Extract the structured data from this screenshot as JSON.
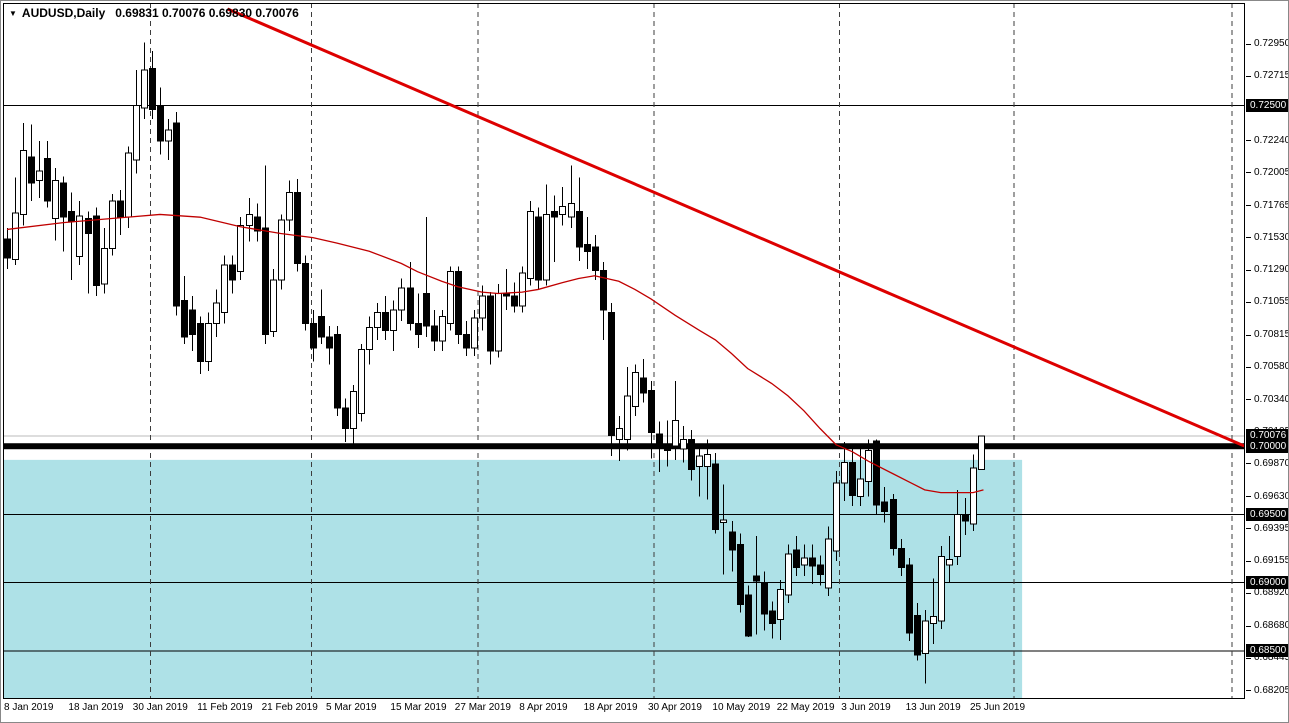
{
  "title": {
    "dropdown_icon": "▼",
    "symbol": "AUDUSD,Daily",
    "quote": "0.69831 0.70076 0.69830 0.70076"
  },
  "colors": {
    "bull_body": "#ffffff",
    "bear_body": "#000000",
    "candle_outline": "#000000",
    "trendline": "#dd0000",
    "ma_line": "#c00000",
    "zone_fill": "#aee1e7",
    "current_price_line": "#bbbbbb",
    "h_line": "#000000",
    "separator": "#3d3d3d",
    "tag_bg": "#000000",
    "tag_text": "#ffffff",
    "axis_text": "#000000"
  },
  "y_axis": {
    "ticks": [
      "0.72950",
      "0.72715",
      "0.72480",
      "0.72240",
      "0.72005",
      "0.71765",
      "0.71530",
      "0.71290",
      "0.71055",
      "0.70815",
      "0.70580",
      "0.70340",
      "0.70105",
      "0.69870",
      "0.69630",
      "0.69395",
      "0.69155",
      "0.68920",
      "0.68680",
      "0.68445",
      "0.68205"
    ],
    "tags": [
      "0.72500",
      "0.70076",
      "0.70000",
      "0.69500",
      "0.69000",
      "0.68500"
    ]
  },
  "x_axis": {
    "bars": [
      0,
      8,
      16,
      24,
      32,
      40,
      48,
      56,
      64,
      72,
      80,
      88,
      96,
      104,
      112,
      120
    ],
    "labels": [
      "8 Jan 2019",
      "18 Jan 2019",
      "30 Jan 2019",
      "11 Feb 2019",
      "21 Feb 2019",
      "5 Mar 2019",
      "15 Mar 2019",
      "27 Mar 2019",
      "8 Apr 2019",
      "18 Apr 2019",
      "30 Apr 2019",
      "10 May 2019",
      "22 May 2019",
      "3 Jun 2019",
      "13 Jun 2019",
      "25 Jun 2019"
    ]
  },
  "chart_data": {
    "type": "candlestick",
    "symbol": "AUDUSD",
    "timeframe": "Daily",
    "last_bar": {
      "open": 0.69831,
      "high": 0.70076,
      "low": 0.6983,
      "close": 0.70076
    },
    "visible_price_range": [
      0.6813,
      0.7301
    ],
    "h_lines": {
      "thick": 0.7,
      "thin": [
        0.725,
        0.695,
        0.69,
        0.685
      ],
      "current_price": 0.70076
    },
    "trendline": {
      "from": {
        "bar": 27.4,
        "price": 0.73207
      },
      "to": {
        "bar": 153.7,
        "price": 0.70002
      }
    },
    "zone": {
      "top_price": 0.699,
      "left_bar": -0.6,
      "right_bar": 126.1
    },
    "month_separators_bars": [
      17.8,
      37.8,
      58.5,
      80.4,
      103.4,
      125.1,
      152.2
    ],
    "candles": [
      [
        0.7152,
        0.716,
        0.713,
        0.7138
      ],
      [
        0.7137,
        0.7197,
        0.7133,
        0.7171
      ],
      [
        0.717,
        0.7237,
        0.7162,
        0.7217
      ],
      [
        0.7212,
        0.7236,
        0.718,
        0.7193
      ],
      [
        0.7195,
        0.7224,
        0.7182,
        0.7202
      ],
      [
        0.7211,
        0.7224,
        0.7175,
        0.718
      ],
      [
        0.7167,
        0.7204,
        0.7151,
        0.7195
      ],
      [
        0.7193,
        0.7198,
        0.7143,
        0.7168
      ],
      [
        0.7172,
        0.7186,
        0.7122,
        0.7165
      ],
      [
        0.7139,
        0.718,
        0.7133,
        0.7169
      ],
      [
        0.7167,
        0.7172,
        0.7112,
        0.7156
      ],
      [
        0.7169,
        0.7175,
        0.711,
        0.7118
      ],
      [
        0.7119,
        0.716,
        0.7112,
        0.7145
      ],
      [
        0.7145,
        0.7185,
        0.714,
        0.718
      ],
      [
        0.718,
        0.7188,
        0.7155,
        0.7168
      ],
      [
        0.7168,
        0.722,
        0.716,
        0.7215
      ],
      [
        0.721,
        0.7276,
        0.72,
        0.725
      ],
      [
        0.7248,
        0.7296,
        0.724,
        0.7276
      ],
      [
        0.7277,
        0.729,
        0.724,
        0.7247
      ],
      [
        0.7249,
        0.7263,
        0.7214,
        0.7224
      ],
      [
        0.7224,
        0.724,
        0.721,
        0.7232
      ],
      [
        0.7237,
        0.7245,
        0.7096,
        0.7103
      ],
      [
        0.7107,
        0.7125,
        0.7075,
        0.708
      ],
      [
        0.71,
        0.711,
        0.707,
        0.7082
      ],
      [
        0.709,
        0.7095,
        0.7053,
        0.7062
      ],
      [
        0.7062,
        0.7098,
        0.7055,
        0.709
      ],
      [
        0.709,
        0.7115,
        0.708,
        0.7105
      ],
      [
        0.7098,
        0.714,
        0.709,
        0.7133
      ],
      [
        0.7133,
        0.714,
        0.7112,
        0.7122
      ],
      [
        0.7128,
        0.7168,
        0.7122,
        0.7162
      ],
      [
        0.7162,
        0.7182,
        0.715,
        0.717
      ],
      [
        0.7168,
        0.7178,
        0.715,
        0.7158
      ],
      [
        0.716,
        0.7206,
        0.7075,
        0.7082
      ],
      [
        0.7084,
        0.713,
        0.708,
        0.7122
      ],
      [
        0.7122,
        0.717,
        0.7115,
        0.7166
      ],
      [
        0.7166,
        0.7195,
        0.7158,
        0.7186
      ],
      [
        0.7186,
        0.7196,
        0.7128,
        0.7134
      ],
      [
        0.7134,
        0.714,
        0.7085,
        0.709
      ],
      [
        0.709,
        0.71,
        0.7062,
        0.7072
      ],
      [
        0.7095,
        0.7115,
        0.7075,
        0.708
      ],
      [
        0.708,
        0.7088,
        0.706,
        0.7072
      ],
      [
        0.7082,
        0.7088,
        0.7022,
        0.7028
      ],
      [
        0.7028,
        0.7035,
        0.7003,
        0.7013
      ],
      [
        0.7013,
        0.7045,
        0.7,
        0.704
      ],
      [
        0.7024,
        0.7075,
        0.7018,
        0.7071
      ],
      [
        0.7071,
        0.7095,
        0.706,
        0.7087
      ],
      [
        0.7087,
        0.7105,
        0.7078,
        0.7098
      ],
      [
        0.7098,
        0.711,
        0.7078,
        0.7085
      ],
      [
        0.7085,
        0.7107,
        0.707,
        0.71
      ],
      [
        0.71,
        0.7123,
        0.7092,
        0.7116
      ],
      [
        0.7116,
        0.7135,
        0.7085,
        0.709
      ],
      [
        0.709,
        0.7112,
        0.7072,
        0.7082
      ],
      [
        0.7112,
        0.7168,
        0.708,
        0.7088
      ],
      [
        0.7088,
        0.71,
        0.707,
        0.7077
      ],
      [
        0.7077,
        0.71,
        0.707,
        0.7095
      ],
      [
        0.709,
        0.7132,
        0.7085,
        0.7128
      ],
      [
        0.7128,
        0.7132,
        0.7075,
        0.7082
      ],
      [
        0.7082,
        0.7092,
        0.7066,
        0.7072
      ],
      [
        0.7072,
        0.71,
        0.7066,
        0.7094
      ],
      [
        0.7094,
        0.7118,
        0.7085,
        0.711
      ],
      [
        0.711,
        0.7113,
        0.706,
        0.707
      ],
      [
        0.707,
        0.7119,
        0.7065,
        0.7112
      ],
      [
        0.7112,
        0.713,
        0.71,
        0.711
      ],
      [
        0.711,
        0.712,
        0.7098,
        0.7103
      ],
      [
        0.7103,
        0.7132,
        0.7098,
        0.7127
      ],
      [
        0.7123,
        0.718,
        0.7118,
        0.7172
      ],
      [
        0.7168,
        0.7175,
        0.7115,
        0.7122
      ],
      [
        0.7122,
        0.7192,
        0.7118,
        0.717
      ],
      [
        0.7172,
        0.7184,
        0.7135,
        0.7168
      ],
      [
        0.717,
        0.719,
        0.7162,
        0.7176
      ],
      [
        0.7168,
        0.7206,
        0.716,
        0.7178
      ],
      [
        0.7172,
        0.7197,
        0.7136,
        0.7146
      ],
      [
        0.7148,
        0.7168,
        0.713,
        0.7143
      ],
      [
        0.7146,
        0.7155,
        0.7122,
        0.7129
      ],
      [
        0.7129,
        0.7135,
        0.7078,
        0.71
      ],
      [
        0.7098,
        0.7105,
        0.6993,
        0.7008
      ],
      [
        0.7005,
        0.7022,
        0.6989,
        0.7013
      ],
      [
        0.7005,
        0.7058,
        0.6997,
        0.7037
      ],
      [
        0.7029,
        0.706,
        0.7022,
        0.7054
      ],
      [
        0.705,
        0.7064,
        0.7032,
        0.7039
      ],
      [
        0.7041,
        0.7048,
        0.6991,
        0.701
      ],
      [
        0.7009,
        0.7018,
        0.6981,
        0.7001
      ],
      [
        0.7,
        0.7019,
        0.6985,
        0.6997
      ],
      [
        0.7,
        0.7048,
        0.699,
        0.7019
      ],
      [
        0.6998,
        0.7015,
        0.6988,
        0.7005
      ],
      [
        0.7005,
        0.7012,
        0.6975,
        0.6983
      ],
      [
        0.6985,
        0.7,
        0.6963,
        0.6993
      ],
      [
        0.6985,
        0.7005,
        0.6961,
        0.6994
      ],
      [
        0.6987,
        0.6995,
        0.6936,
        0.6939
      ],
      [
        0.6944,
        0.6972,
        0.6906,
        0.6946
      ],
      [
        0.6937,
        0.6945,
        0.6908,
        0.6924
      ],
      [
        0.6928,
        0.6936,
        0.6878,
        0.6884
      ],
      [
        0.6891,
        0.6898,
        0.686,
        0.6861
      ],
      [
        0.6905,
        0.6934,
        0.6862,
        0.6901
      ],
      [
        0.69,
        0.6908,
        0.6865,
        0.6877
      ],
      [
        0.6879,
        0.6886,
        0.6859,
        0.687
      ],
      [
        0.6873,
        0.6902,
        0.6858,
        0.6895
      ],
      [
        0.6891,
        0.6928,
        0.6885,
        0.6921
      ],
      [
        0.6924,
        0.6934,
        0.6905,
        0.6911
      ],
      [
        0.6913,
        0.6928,
        0.6905,
        0.6918
      ],
      [
        0.6918,
        0.6928,
        0.6899,
        0.6912
      ],
      [
        0.6913,
        0.692,
        0.6898,
        0.6906
      ],
      [
        0.6896,
        0.6941,
        0.689,
        0.6932
      ],
      [
        0.6923,
        0.6982,
        0.6916,
        0.6973
      ],
      [
        0.6973,
        0.7003,
        0.696,
        0.6988
      ],
      [
        0.6988,
        0.6998,
        0.6956,
        0.6964
      ],
      [
        0.6963,
        0.6998,
        0.6956,
        0.6976
      ],
      [
        0.6974,
        0.7005,
        0.6963,
        0.6997
      ],
      [
        0.7004,
        0.7005,
        0.695,
        0.6957
      ],
      [
        0.6959,
        0.697,
        0.6944,
        0.6952
      ],
      [
        0.6961,
        0.6965,
        0.692,
        0.6925
      ],
      [
        0.6925,
        0.6932,
        0.6905,
        0.6911
      ],
      [
        0.6913,
        0.6918,
        0.6857,
        0.6863
      ],
      [
        0.6876,
        0.6885,
        0.6843,
        0.6847
      ],
      [
        0.6848,
        0.688,
        0.6826,
        0.6872
      ],
      [
        0.687,
        0.6903,
        0.6855,
        0.6875
      ],
      [
        0.6872,
        0.6927,
        0.6866,
        0.6919
      ],
      [
        0.6913,
        0.6934,
        0.69,
        0.6917
      ],
      [
        0.6919,
        0.6968,
        0.6913,
        0.695
      ],
      [
        0.695,
        0.6962,
        0.6935,
        0.6945
      ],
      [
        0.6943,
        0.6994,
        0.6938,
        0.6984
      ],
      [
        0.69831,
        0.70076,
        0.6983,
        0.70076
      ]
    ],
    "ma_line": [
      [
        0,
        0.7159
      ],
      [
        7,
        0.7164
      ],
      [
        13,
        0.7167
      ],
      [
        19,
        0.717
      ],
      [
        24,
        0.7168
      ],
      [
        29,
        0.7161
      ],
      [
        34,
        0.7156
      ],
      [
        38,
        0.7153
      ],
      [
        41,
        0.7149
      ],
      [
        45,
        0.7143
      ],
      [
        49,
        0.7134
      ],
      [
        51,
        0.7128
      ],
      [
        54,
        0.7121
      ],
      [
        56,
        0.7117
      ],
      [
        59,
        0.7113
      ],
      [
        61,
        0.7112
      ],
      [
        64,
        0.7113
      ],
      [
        66,
        0.7115
      ],
      [
        69,
        0.712
      ],
      [
        71,
        0.7123
      ],
      [
        73,
        0.7125
      ],
      [
        76,
        0.7121
      ],
      [
        78,
        0.7115
      ],
      [
        80,
        0.7108
      ],
      [
        83,
        0.7096
      ],
      [
        86,
        0.7085
      ],
      [
        88,
        0.7078
      ],
      [
        90,
        0.7068
      ],
      [
        92,
        0.7057
      ],
      [
        95,
        0.7046
      ],
      [
        97,
        0.7037
      ],
      [
        99,
        0.7026
      ],
      [
        101,
        0.7013
      ],
      [
        103,
        0.7001
      ],
      [
        105,
        0.6996
      ],
      [
        107,
        0.6989
      ],
      [
        110,
        0.698
      ],
      [
        112,
        0.6974
      ],
      [
        114,
        0.6968
      ],
      [
        116,
        0.6966
      ],
      [
        118,
        0.6966
      ],
      [
        120,
        0.6966
      ],
      [
        121.3,
        0.6968
      ]
    ]
  }
}
